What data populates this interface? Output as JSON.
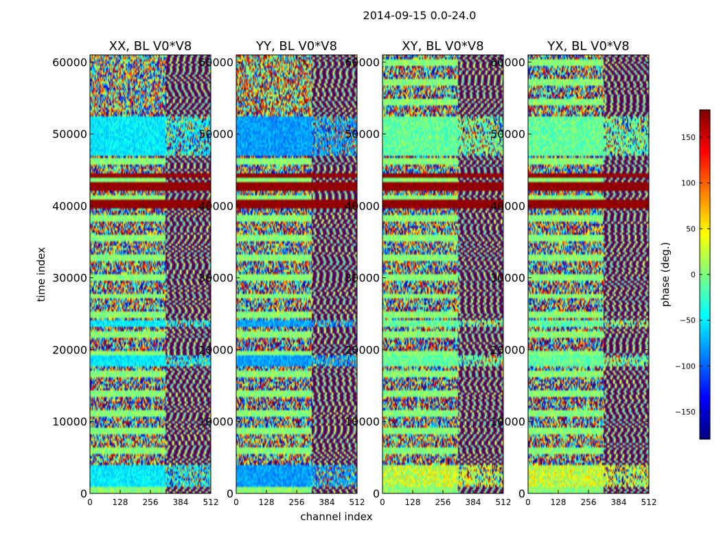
{
  "figure_title": "2014-09-15 0.0-24.0",
  "chart_data": {
    "type": "heatmap",
    "title": "2014-09-15 0.0-24.0",
    "xlabel": "channel index",
    "ylabel": "time index",
    "xlim": [
      0,
      512
    ],
    "ylim": [
      0,
      61000
    ],
    "x_ticks": [
      0,
      128,
      256,
      384,
      512
    ],
    "x_tick_labels": [
      "0",
      "128",
      "256",
      "384",
      "512"
    ],
    "y_ticks": [
      0,
      10000,
      20000,
      30000,
      40000,
      50000,
      60000
    ],
    "y_tick_labels": [
      "0",
      "10000",
      "20000",
      "30000",
      "40000",
      "50000",
      "60000"
    ],
    "panels": [
      {
        "title": "XX, BL V0*V8",
        "polarization": "XX"
      },
      {
        "title": "YY, BL V0*V8",
        "polarization": "YY"
      },
      {
        "title": "XY, BL V0*V8",
        "polarization": "XY"
      },
      {
        "title": "YX, BL V0*V8",
        "polarization": "YX"
      }
    ],
    "colorbar": {
      "label": "phase (deg.)",
      "range": [
        -180,
        180
      ],
      "ticks": [
        -150,
        -100,
        -50,
        0,
        50,
        100,
        150
      ],
      "tick_labels": [
        "−150",
        "−100",
        "−50",
        "0",
        "50",
        "100",
        "150"
      ],
      "colormap": "jet"
    },
    "features": {
      "saturated_bands_time": [
        [
          39800,
          40800
        ],
        [
          42200,
          43200
        ],
        [
          43800,
          44600
        ]
      ],
      "flat_bands_time": [
        [
          1000,
          4000
        ],
        [
          17800,
          19200
        ],
        [
          23300,
          24000
        ],
        [
          47000,
          52500
        ]
      ],
      "fringe_channel_start": 320
    }
  },
  "colors": {
    "jet": [
      "#000080",
      "#0000ff",
      "#0080ff",
      "#00ffff",
      "#80ff80",
      "#ffff00",
      "#ff8000",
      "#ff0000",
      "#800000"
    ],
    "background": "#ffffff",
    "axis": "#000000"
  }
}
